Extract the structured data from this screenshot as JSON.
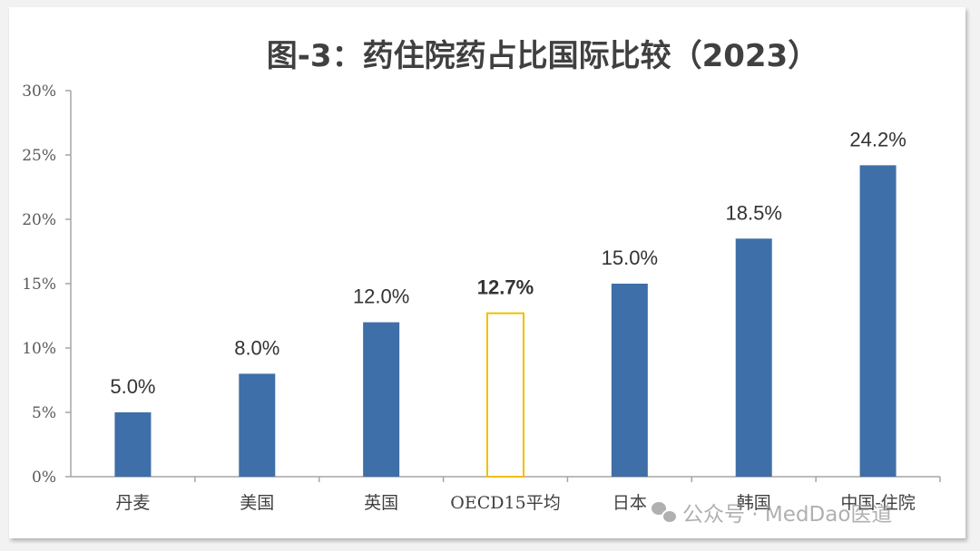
{
  "chart_data": {
    "type": "bar",
    "title": "图-3：药住院药占比国际比较（2023）",
    "categories": [
      "丹麦",
      "美国",
      "英国",
      "OECD15平均",
      "日本",
      "韩国",
      "中国-住院"
    ],
    "values": [
      5.0,
      8.0,
      12.0,
      12.7,
      15.0,
      18.5,
      24.2
    ],
    "value_labels": [
      "5.0%",
      "8.0%",
      "12.0%",
      "12.7%",
      "15.0%",
      "18.5%",
      "24.2%"
    ],
    "highlight_index": 3,
    "yticks": [
      "0%",
      "5%",
      "10%",
      "15%",
      "20%",
      "25%",
      "30%"
    ],
    "ylim": [
      0,
      30
    ],
    "xlabel": "",
    "ylabel": "",
    "grid": false,
    "colors": {
      "bar": "#3e6fa8",
      "highlight": "#f0c000",
      "highlight_label": "#f0c000",
      "axis": "#a6a6a6"
    }
  },
  "watermark": {
    "text": "公众号 · MedDao医道",
    "icon": "wechat-icon"
  }
}
